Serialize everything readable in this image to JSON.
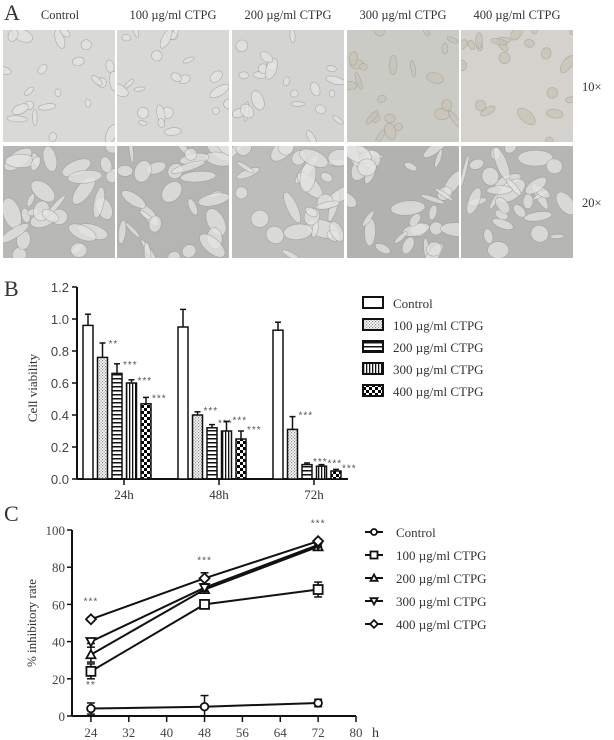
{
  "panelA": {
    "letter": "A",
    "columns": [
      "Control",
      "100 µg/ml CTPG",
      "200 µg/ml CTPG",
      "300 µg/ml CTPG",
      "400 µg/ml CTPG"
    ],
    "rows": [
      {
        "magnification": "10×"
      },
      {
        "magnification": "20×"
      }
    ],
    "tones": {
      "row1": [
        "#d9d9d6",
        "#d8d8d5",
        "#d4d4d2",
        "#cbcbc6",
        "#d3d2cd"
      ],
      "row2": [
        "#b8b8b6",
        "#b5b5b3",
        "#bdbdbb",
        "#b2b2b0",
        "#b6b6b4"
      ]
    }
  },
  "chart_data": [
    {
      "panel": "B",
      "type": "bar",
      "title": "",
      "xlabel": "",
      "ylabel": "Cell viability",
      "ylim": [
        0,
        1.2
      ],
      "yticks": [
        "0.0",
        "0.2",
        "0.4",
        "0.6",
        "0.8",
        "1.0",
        "1.2"
      ],
      "categories": [
        "24h",
        "48h",
        "72h"
      ],
      "legend_position": "right",
      "grid": false,
      "series": [
        {
          "name": "Control",
          "pattern": "open",
          "values": [
            0.96,
            0.95,
            0.93
          ],
          "errors": [
            0.07,
            0.11,
            0.05
          ],
          "significance": [
            "",
            "",
            ""
          ]
        },
        {
          "name": "100 µg/ml CTPG",
          "pattern": "dots",
          "values": [
            0.76,
            0.4,
            0.31
          ],
          "errors": [
            0.09,
            0.02,
            0.08
          ],
          "significance": [
            "**",
            "***",
            "***"
          ]
        },
        {
          "name": "200 µg/ml CTPG",
          "pattern": "hstripes",
          "values": [
            0.66,
            0.32,
            0.09
          ],
          "errors": [
            0.06,
            0.02,
            0.01
          ],
          "significance": [
            "***",
            "***",
            "***"
          ]
        },
        {
          "name": "300 µg/ml CTPG",
          "pattern": "vstripes",
          "values": [
            0.6,
            0.3,
            0.08
          ],
          "errors": [
            0.02,
            0.06,
            0.01
          ],
          "significance": [
            "***",
            "***",
            "***"
          ]
        },
        {
          "name": "400 µg/ml CTPG",
          "pattern": "checker",
          "values": [
            0.47,
            0.25,
            0.05
          ],
          "errors": [
            0.04,
            0.05,
            0.01
          ],
          "significance": [
            "***",
            "***",
            "***"
          ]
        }
      ]
    },
    {
      "panel": "C",
      "type": "line",
      "title": "",
      "xlabel": "h",
      "ylabel": "% inhibitory rate",
      "xlim": [
        20,
        80
      ],
      "ylim": [
        0,
        100
      ],
      "xticks": [
        "24",
        "32",
        "40",
        "48",
        "56",
        "64",
        "72",
        "80"
      ],
      "yticks": [
        "0",
        "20",
        "40",
        "60",
        "80",
        "100"
      ],
      "x": [
        24,
        48,
        72
      ],
      "legend_position": "right",
      "grid": false,
      "annotations": [
        {
          "x": 24,
          "y": 60,
          "text": "***"
        },
        {
          "x": 48,
          "y": 82,
          "text": "***"
        },
        {
          "x": 72,
          "y": 102,
          "text": "***"
        },
        {
          "x": 24,
          "y": 15,
          "text": "**"
        }
      ],
      "series": [
        {
          "name": "Control",
          "marker": "circle",
          "values": [
            4,
            5,
            7
          ],
          "errors": [
            3,
            6,
            2
          ]
        },
        {
          "name": "100 µg/ml CTPG",
          "marker": "square",
          "values": [
            24,
            60,
            68
          ],
          "errors": [
            4,
            1,
            4
          ]
        },
        {
          "name": "200 µg/ml CTPG",
          "marker": "triangle-up",
          "values": [
            33,
            68,
            91
          ],
          "errors": [
            4,
            2,
            1
          ]
        },
        {
          "name": "300 µg/ml CTPG",
          "marker": "triangle-down",
          "values": [
            40,
            69,
            92
          ],
          "errors": [
            1,
            2,
            1
          ]
        },
        {
          "name": "400 µg/ml CTPG",
          "marker": "diamond",
          "values": [
            52,
            74,
            94
          ],
          "errors": [
            1,
            3,
            1
          ]
        }
      ]
    }
  ]
}
